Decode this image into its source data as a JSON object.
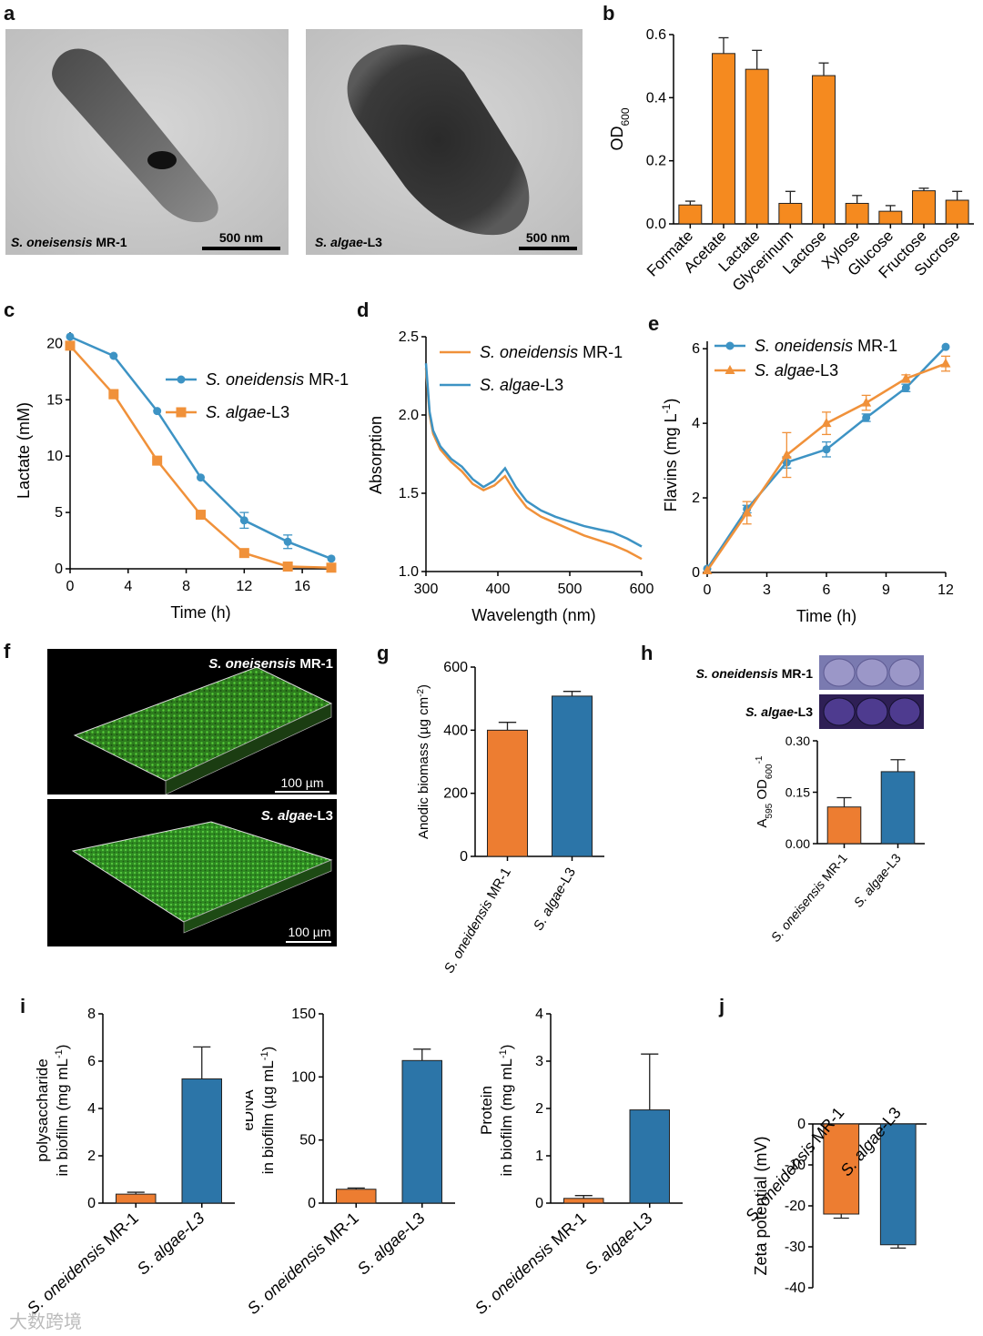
{
  "colors": {
    "orange": "#f58a1f",
    "orange2": "#ed7d31",
    "blue": "#2e8bc0",
    "blue2": "#2c75a8",
    "line_orange": "#f0913a",
    "line_blue": "#3d93c4"
  },
  "panels": {
    "a": "a",
    "b": "b",
    "c": "c",
    "d": "d",
    "e": "e",
    "f": "f",
    "g": "g",
    "h": "h",
    "i": "i",
    "j": "j"
  },
  "micrographs": {
    "left": {
      "label_italic": "S. oneisensis",
      "label_rest": " MR-1",
      "scale": "500 nm"
    },
    "right": {
      "label_italic": "S. algae",
      "label_rest": "-L3",
      "scale": "500 nm"
    }
  },
  "biofilm_images": {
    "top": {
      "label_italic": "S. oneisensis",
      "label_rest": " MR-1",
      "scale": "100 µm"
    },
    "bottom": {
      "label_italic": "S. algae",
      "label_rest": "-L3",
      "scale": "100 µm"
    }
  },
  "plate_images": {
    "row1_italic": "S. oneidensis",
    "row1_rest": " MR-1",
    "row2_italic": "S. algae",
    "row2_rest": "-L3"
  },
  "chart_data": [
    {
      "id": "b",
      "type": "bar",
      "categories": [
        "Formate",
        "Acetate",
        "Lactate",
        "Glycerinum",
        "Lactose",
        "Xylose",
        "Glucose",
        "Fructose",
        "Sucrose"
      ],
      "values": [
        0.06,
        0.54,
        0.49,
        0.065,
        0.47,
        0.065,
        0.04,
        0.105,
        0.075
      ],
      "errors": [
        0.012,
        0.05,
        0.06,
        0.038,
        0.04,
        0.025,
        0.018,
        0.008,
        0.028
      ],
      "ylabel": "OD",
      "ylabel_sub": "600",
      "ylim": [
        0,
        0.6
      ],
      "yticks": [
        "0.0",
        "0.2",
        "0.4",
        "0.6"
      ]
    },
    {
      "id": "c",
      "type": "line",
      "xlabel": "Time (h)",
      "ylabel": "Lactate (mM)",
      "xlim": [
        0,
        18
      ],
      "ylim": [
        0,
        21
      ],
      "xticks": [
        "0",
        "4",
        "8",
        "12",
        "16"
      ],
      "yticks": [
        "0",
        "5",
        "10",
        "15",
        "20"
      ],
      "series": [
        {
          "name_italic": "S. oneidensis",
          "name_rest": " MR-1",
          "x": [
            0,
            3,
            6,
            9,
            12,
            15,
            18
          ],
          "y": [
            20.6,
            18.9,
            14.0,
            8.1,
            4.3,
            2.4,
            0.9
          ],
          "err": [
            0,
            0,
            0,
            0,
            0.7,
            0.6,
            0
          ]
        },
        {
          "name_italic": "S. algae",
          "name_rest": "-L3",
          "x": [
            0,
            3,
            6,
            9,
            12,
            15,
            18
          ],
          "y": [
            19.8,
            15.5,
            9.6,
            4.8,
            1.4,
            0.2,
            0.1
          ],
          "err": [
            0,
            0.4,
            0,
            0,
            0,
            0,
            0
          ]
        }
      ]
    },
    {
      "id": "d",
      "type": "line",
      "xlabel": "Wavelength (nm)",
      "ylabel": "Absorption",
      "xlim": [
        300,
        600
      ],
      "ylim": [
        1.0,
        2.5
      ],
      "xticks": [
        "300",
        "400",
        "500",
        "600"
      ],
      "yticks": [
        "1.0",
        "1.5",
        "2.0",
        "2.5"
      ],
      "series": [
        {
          "name_italic": "S. oneidensis",
          "name_rest": " MR-1",
          "x": [
            300,
            305,
            310,
            320,
            335,
            350,
            365,
            380,
            395,
            410,
            425,
            440,
            460,
            480,
            500,
            520,
            540,
            560,
            580,
            600
          ],
          "y": [
            2.3,
            2.0,
            1.88,
            1.78,
            1.7,
            1.64,
            1.56,
            1.52,
            1.55,
            1.61,
            1.5,
            1.41,
            1.35,
            1.31,
            1.27,
            1.23,
            1.2,
            1.17,
            1.13,
            1.08
          ]
        },
        {
          "name_italic": "S. algae",
          "name_rest": "-L3",
          "x": [
            300,
            305,
            310,
            320,
            335,
            350,
            365,
            380,
            395,
            410,
            425,
            440,
            460,
            480,
            500,
            520,
            540,
            560,
            580,
            600
          ],
          "y": [
            2.33,
            2.02,
            1.9,
            1.8,
            1.72,
            1.67,
            1.59,
            1.54,
            1.58,
            1.66,
            1.54,
            1.45,
            1.39,
            1.35,
            1.32,
            1.29,
            1.27,
            1.25,
            1.21,
            1.16
          ]
        }
      ]
    },
    {
      "id": "e",
      "type": "line",
      "xlabel": "Time (h)",
      "ylabel": "Flavins (mg L",
      "ylabel_sup": "-1",
      "ylabel_end": ")",
      "xlim": [
        0,
        12
      ],
      "ylim": [
        0,
        6.2
      ],
      "xticks": [
        "0",
        "3",
        "6",
        "9",
        "12"
      ],
      "yticks": [
        "0",
        "2",
        "4",
        "6"
      ],
      "series": [
        {
          "name_italic": "S. oneidensis",
          "name_rest": " MR-1",
          "x": [
            0,
            2,
            4,
            6,
            8,
            10,
            12
          ],
          "y": [
            0.1,
            1.7,
            2.95,
            3.3,
            4.15,
            4.95,
            6.05
          ],
          "err": [
            0,
            0.1,
            0.15,
            0.2,
            0.1,
            0.1,
            0
          ]
        },
        {
          "name_italic": "S. algae",
          "name_rest": "-L3",
          "x": [
            0,
            2,
            4,
            6,
            8,
            10,
            12
          ],
          "y": [
            0.05,
            1.6,
            3.15,
            4.0,
            4.55,
            5.2,
            5.6
          ],
          "err": [
            0,
            0.3,
            0.6,
            0.3,
            0.2,
            0.1,
            0.2
          ]
        }
      ]
    },
    {
      "id": "g",
      "type": "bar",
      "categories": [
        {
          "italic": "S. oneidensis",
          "rest": " MR-1"
        },
        {
          "italic": "S. algae",
          "rest": "-L3"
        }
      ],
      "values": [
        400,
        508
      ],
      "errors": [
        25,
        15
      ],
      "ylabel": "Anodic biomass (µg cm",
      "ylabel_sup": "-2",
      "ylabel_end": ")",
      "ylim": [
        0,
        600
      ],
      "yticks": [
        "0",
        "200",
        "400",
        "600"
      ]
    },
    {
      "id": "h",
      "type": "bar",
      "categories": [
        {
          "italic": "S. oneisensis",
          "rest": " MR-1"
        },
        {
          "italic": "S. algae",
          "rest": "-L3"
        }
      ],
      "values": [
        0.107,
        0.21
      ],
      "errors": [
        0.027,
        0.035
      ],
      "ylabel_a": "A",
      "ylabel_a_sub": "595",
      "ylabel_b": " OD",
      "ylabel_b_sub": "600",
      "ylabel_sup": "-1",
      "ylim": [
        0,
        0.3
      ],
      "yticks": [
        "0.00",
        "0.15",
        "0.30"
      ]
    },
    {
      "id": "i1",
      "type": "bar",
      "categories": [
        {
          "italic": "S. oneidensis",
          "rest": " MR-1"
        },
        {
          "italic": "S. algae-L3",
          "rest": ""
        }
      ],
      "values": [
        0.38,
        5.25
      ],
      "errors": [
        0.08,
        1.35
      ],
      "ylabel_line1": "polysaccharide",
      "ylabel_line2": "in biofilm (mg mL",
      "ylabel_sup": "-1",
      "ylabel_end": ")",
      "ylim": [
        0,
        8
      ],
      "yticks": [
        "0",
        "2",
        "4",
        "6",
        "8"
      ]
    },
    {
      "id": "i2",
      "type": "bar",
      "categories": [
        {
          "italic": "S. oneidensis",
          "rest": " MR-1"
        },
        {
          "italic": "S. algae",
          "rest": "-L3"
        }
      ],
      "values": [
        11,
        113
      ],
      "errors": [
        1,
        9
      ],
      "ylabel_line1": "eDNA",
      "ylabel_line2": "in biofilm (µg mL",
      "ylabel_sup": "-1",
      "ylabel_end": ")",
      "ylim": [
        0,
        150
      ],
      "yticks": [
        "0",
        "50",
        "100",
        "150"
      ]
    },
    {
      "id": "i3",
      "type": "bar",
      "categories": [
        {
          "italic": "S. oneidensis",
          "rest": " MR-1"
        },
        {
          "italic": "S. algae",
          "rest": "-L3"
        }
      ],
      "values": [
        0.1,
        1.97
      ],
      "errors": [
        0.06,
        1.18
      ],
      "ylabel_line1": "Protein",
      "ylabel_line2": "in biofilm (mg mL",
      "ylabel_sup": "-1",
      "ylabel_end": ")",
      "ylim": [
        0,
        4
      ],
      "yticks": [
        "0",
        "1",
        "2",
        "3",
        "4"
      ]
    },
    {
      "id": "j",
      "type": "bar",
      "categories": [
        {
          "italic": "S. oneidensis",
          "rest": " MR-1"
        },
        {
          "italic": "S. algae",
          "rest": "-L3"
        }
      ],
      "values": [
        -22,
        -29.5
      ],
      "errors": [
        1,
        0.8
      ],
      "ylabel": "Zeta potential (mV)",
      "ylim": [
        -40,
        0
      ],
      "yticks": [
        "0",
        "-10",
        "-20",
        "-30",
        "-40"
      ]
    }
  ],
  "watermark": "大数跨境"
}
